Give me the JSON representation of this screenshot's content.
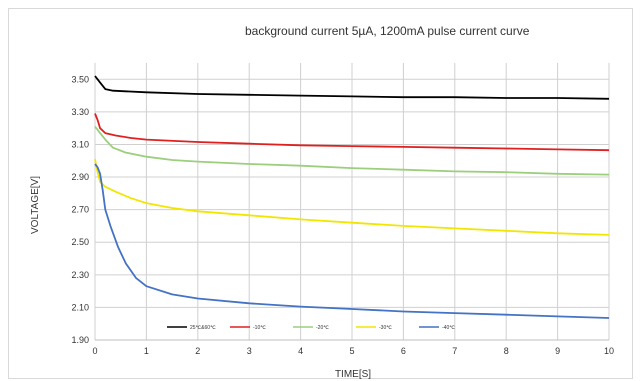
{
  "chart_data": {
    "type": "line",
    "title": "background current 5µA, 1200mA pulse current curve",
    "xlabel": "TIME[S]",
    "ylabel": "VOLTAGE[V]",
    "xlim": [
      0,
      10
    ],
    "ylim": [
      1.9,
      3.6
    ],
    "x_ticks": [
      "0",
      "1",
      "2",
      "3",
      "4",
      "5",
      "6",
      "7",
      "8",
      "9",
      "10"
    ],
    "y_ticks": [
      "1.90",
      "2.10",
      "2.30",
      "2.50",
      "2.70",
      "2.90",
      "3.10",
      "3.30",
      "3.50"
    ],
    "grid": true,
    "legend_position": "bottom-inside",
    "series": [
      {
        "name": "25℃&60℃",
        "color": "#000000",
        "points": [
          [
            0,
            3.52
          ],
          [
            0.1,
            3.48
          ],
          [
            0.2,
            3.44
          ],
          [
            0.35,
            3.43
          ],
          [
            1,
            3.42
          ],
          [
            2,
            3.41
          ],
          [
            3,
            3.405
          ],
          [
            4,
            3.4
          ],
          [
            5,
            3.395
          ],
          [
            6,
            3.39
          ],
          [
            7,
            3.39
          ],
          [
            8,
            3.385
          ],
          [
            9,
            3.385
          ],
          [
            10,
            3.38
          ]
        ]
      },
      {
        "name": "-10℃",
        "color": "#e02020",
        "points": [
          [
            0,
            3.29
          ],
          [
            0.05,
            3.25
          ],
          [
            0.1,
            3.2
          ],
          [
            0.2,
            3.17
          ],
          [
            0.4,
            3.155
          ],
          [
            0.7,
            3.14
          ],
          [
            1,
            3.13
          ],
          [
            2,
            3.115
          ],
          [
            3,
            3.105
          ],
          [
            4,
            3.095
          ],
          [
            5,
            3.09
          ],
          [
            6,
            3.085
          ],
          [
            7,
            3.08
          ],
          [
            8,
            3.075
          ],
          [
            9,
            3.07
          ],
          [
            10,
            3.065
          ]
        ]
      },
      {
        "name": "-20℃",
        "color": "#9bcf7d",
        "points": [
          [
            0,
            3.21
          ],
          [
            0.1,
            3.17
          ],
          [
            0.2,
            3.13
          ],
          [
            0.35,
            3.08
          ],
          [
            0.6,
            3.05
          ],
          [
            1,
            3.025
          ],
          [
            1.5,
            3.005
          ],
          [
            2,
            2.995
          ],
          [
            3,
            2.98
          ],
          [
            4,
            2.97
          ],
          [
            5,
            2.955
          ],
          [
            6,
            2.945
          ],
          [
            7,
            2.935
          ],
          [
            8,
            2.93
          ],
          [
            9,
            2.92
          ],
          [
            10,
            2.915
          ]
        ]
      },
      {
        "name": "-30℃",
        "color": "#f2e600",
        "points": [
          [
            0,
            3.01
          ],
          [
            0.05,
            2.93
          ],
          [
            0.1,
            2.87
          ],
          [
            0.2,
            2.84
          ],
          [
            0.4,
            2.81
          ],
          [
            0.7,
            2.77
          ],
          [
            1,
            2.74
          ],
          [
            1.5,
            2.71
          ],
          [
            2,
            2.69
          ],
          [
            3,
            2.665
          ],
          [
            4,
            2.64
          ],
          [
            5,
            2.62
          ],
          [
            6,
            2.6
          ],
          [
            7,
            2.585
          ],
          [
            8,
            2.57
          ],
          [
            9,
            2.555
          ],
          [
            10,
            2.545
          ]
        ]
      },
      {
        "name": "-40℃",
        "color": "#4472c4",
        "points": [
          [
            0,
            2.98
          ],
          [
            0.05,
            2.96
          ],
          [
            0.1,
            2.92
          ],
          [
            0.15,
            2.82
          ],
          [
            0.2,
            2.7
          ],
          [
            0.3,
            2.6
          ],
          [
            0.45,
            2.47
          ],
          [
            0.6,
            2.37
          ],
          [
            0.8,
            2.28
          ],
          [
            1,
            2.23
          ],
          [
            1.5,
            2.18
          ],
          [
            2,
            2.155
          ],
          [
            3,
            2.125
          ],
          [
            4,
            2.105
          ],
          [
            5,
            2.09
          ],
          [
            6,
            2.075
          ],
          [
            7,
            2.065
          ],
          [
            8,
            2.055
          ],
          [
            9,
            2.045
          ],
          [
            10,
            2.035
          ]
        ]
      }
    ]
  }
}
